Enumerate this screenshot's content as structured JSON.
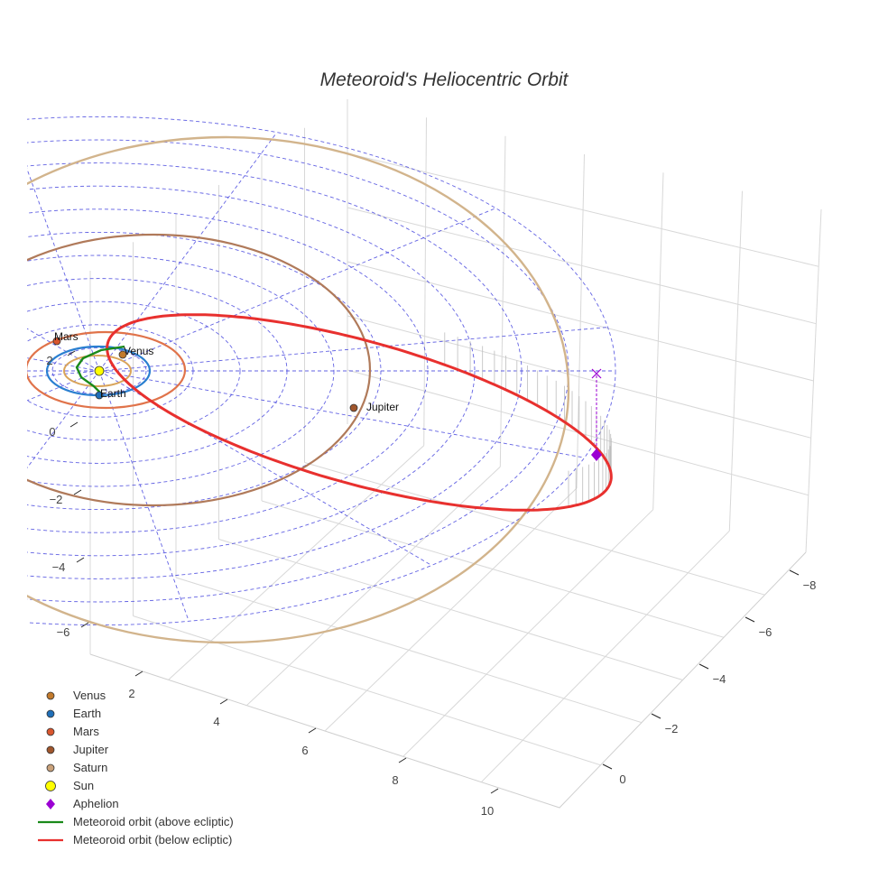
{
  "chart_data": {
    "type": "scatter",
    "title": "Meteoroid's Heliocentric Orbit",
    "projection": "3d",
    "axes": {
      "x": {
        "ticks": [
          2,
          4,
          6,
          8,
          10
        ]
      },
      "y": {
        "ticks": [
          -8,
          -6,
          -4,
          -2,
          0
        ]
      },
      "z": {
        "ticks": [
          -6,
          -4,
          -2,
          0,
          2
        ]
      }
    },
    "legend_position": "bottom-left",
    "ecliptic_grid": {
      "style": "dashed",
      "color": "#3b3bdc",
      "ring_count": 11
    },
    "series": [
      {
        "name": "Venus",
        "color": "#c27a2c",
        "marker": "circle",
        "point_label": "Venus",
        "orbit_color": "#d9a45a"
      },
      {
        "name": "Earth",
        "color": "#1f6fb8",
        "marker": "circle",
        "point_label": "Earth",
        "orbit_color": "#2a7fd0"
      },
      {
        "name": "Mars",
        "color": "#d9562e",
        "marker": "circle",
        "point_label": "Mars",
        "orbit_color": "#e0734a"
      },
      {
        "name": "Jupiter",
        "color": "#a0562c",
        "marker": "circle",
        "point_label": "Jupiter",
        "orbit_color": "#b07a5a"
      },
      {
        "name": "Saturn",
        "color": "#c9a17a",
        "marker": "circle",
        "point_label": "",
        "orbit_color": "#d2b48c"
      },
      {
        "name": "Sun",
        "color": "#ffff00",
        "marker": "circle",
        "point_label": ""
      },
      {
        "name": "Aphelion",
        "color": "#9b00d3",
        "marker": "diamond",
        "point_label": ""
      },
      {
        "name": "Meteoroid orbit (above ecliptic)",
        "color": "#1a8a1a",
        "marker": "line",
        "point_label": ""
      },
      {
        "name": "Meteoroid orbit (below ecliptic)",
        "color": "#e8302e",
        "marker": "line",
        "point_label": ""
      }
    ]
  }
}
